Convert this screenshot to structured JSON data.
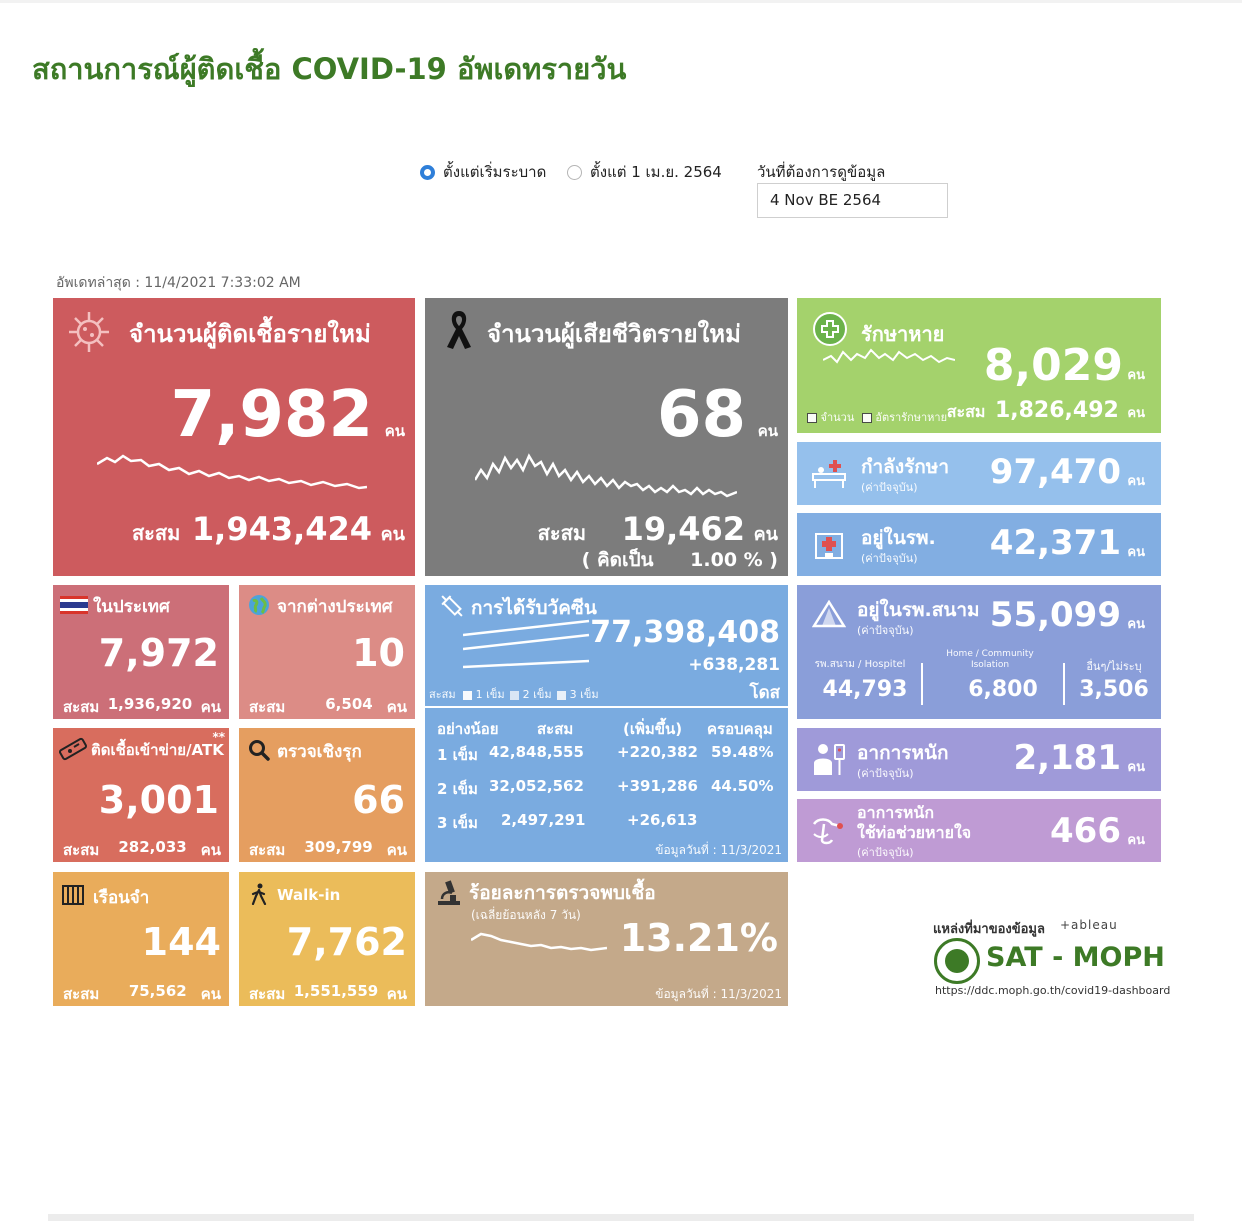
{
  "header": {
    "title": "สถานการณ์ผู้ติดเชื้อ COVID-19 อัพเดทรายวัน"
  },
  "controls": {
    "radio_all": "ตั้งแต่เริ่มระบาด",
    "radio_april": "ตั้งแต่ 1 เม.ย. 2564",
    "date_label": "วันที่ต้องการดูข้อมูล",
    "date_value": "4 Nov BE 2564"
  },
  "updated": "อัพเดทล่าสุด : 11/4/2021 7:33:02 AM",
  "unit": "คน",
  "acc_label": "สะสม",
  "new_cases": {
    "label": "จำนวนผู้ติดเชื้อรายใหม่",
    "value": "7,982",
    "acc": "1,943,424"
  },
  "deaths": {
    "label": "จำนวนผู้เสียชีวิตรายใหม่",
    "value": "68",
    "acc": "19,462",
    "pct_label": "( คิดเป็น",
    "pct_value": "1.00 % )"
  },
  "recovered": {
    "label": "รักษาหาย",
    "value": "8,029",
    "legend_count": "จำนวน",
    "legend_rate": "อัตรารักษาหาย",
    "acc": "1,826,492"
  },
  "treating": {
    "label": "กำลังรักษา",
    "sub": "(ค่าปัจจุบัน)",
    "value": "97,470"
  },
  "hospital": {
    "label": "อยู่ในรพ.",
    "sub": "(ค่าปัจจุบัน)",
    "value": "42,371"
  },
  "domestic": {
    "label": "ในประเทศ",
    "value": "7,972",
    "acc": "1,936,920"
  },
  "abroad": {
    "label": "จากต่างประเทศ",
    "value": "10",
    "acc": "6,504"
  },
  "atk": {
    "label": "ติดเชื้อเข้าข่าย/ATK",
    "mark": "**",
    "value": "3,001",
    "acc": "282,033"
  },
  "proactive": {
    "label": "ตรวจเชิงรุก",
    "value": "66",
    "acc": "309,799"
  },
  "prison": {
    "label": "เรือนจำ",
    "value": "144",
    "acc": "75,562"
  },
  "walkin": {
    "label": "Walk-in",
    "value": "7,762",
    "acc": "1,551,559"
  },
  "vaccine": {
    "label": "การได้รับวัคซีน",
    "total": "77,398,408",
    "delta": "+638,281",
    "unit": "โดส",
    "legend": "สะสม",
    "legend_1": "1 เข็ม",
    "legend_2": "2 เข็ม",
    "legend_3": "3 เข็ม",
    "col_min": "อย่างน้อย",
    "col_acc": "สะสม",
    "col_inc": "(เพิ่มขึ้น)",
    "col_cov": "ครอบคลุม",
    "rows": [
      {
        "dose": "1 เข็ม",
        "acc": "42,848,555",
        "inc": "+220,382",
        "cov": "59.48%"
      },
      {
        "dose": "2 เข็ม",
        "acc": "32,052,562",
        "inc": "+391,286",
        "cov": "44.50%"
      },
      {
        "dose": "3 เข็ม",
        "acc": "2,497,291",
        "inc": "+26,613",
        "cov": ""
      }
    ],
    "date": "ข้อมูลวันที่ : 11/3/2021"
  },
  "positivity": {
    "label": "ร้อยละการตรวจพบเชื้อ",
    "sub": "(เฉลี่ยย้อนหลัง 7 วัน)",
    "value": "13.21%",
    "date": "ข้อมูลวันที่ : 11/3/2021"
  },
  "field_hospital": {
    "label": "อยู่ในรพ.สนาม",
    "sub": "(ค่าปัจจุบัน)",
    "value": "55,099",
    "c1_label": "รพ.สนาม / Hospitel",
    "c1_value": "44,793",
    "c2_label_1": "Home / Community",
    "c2_label_2": "Isolation",
    "c2_value": "6,800",
    "c3_label": "อื่นๆ/ไม่ระบุ",
    "c3_value": "3,506"
  },
  "severe": {
    "label": "อาการหนัก",
    "sub": "(ค่าปัจจุบัน)",
    "value": "2,181"
  },
  "ventilator": {
    "label_1": "อาการหนัก",
    "label_2": "ใช้ท่อช่วยหายใจ",
    "sub": "(ค่าปัจจุบัน)",
    "value": "466"
  },
  "source": {
    "label": "แหล่งที่มาของข้อมูล",
    "tableau": "+ableau",
    "name": "SAT - MOPH",
    "url": "https://ddc.moph.go.th/covid19-dashboard"
  }
}
